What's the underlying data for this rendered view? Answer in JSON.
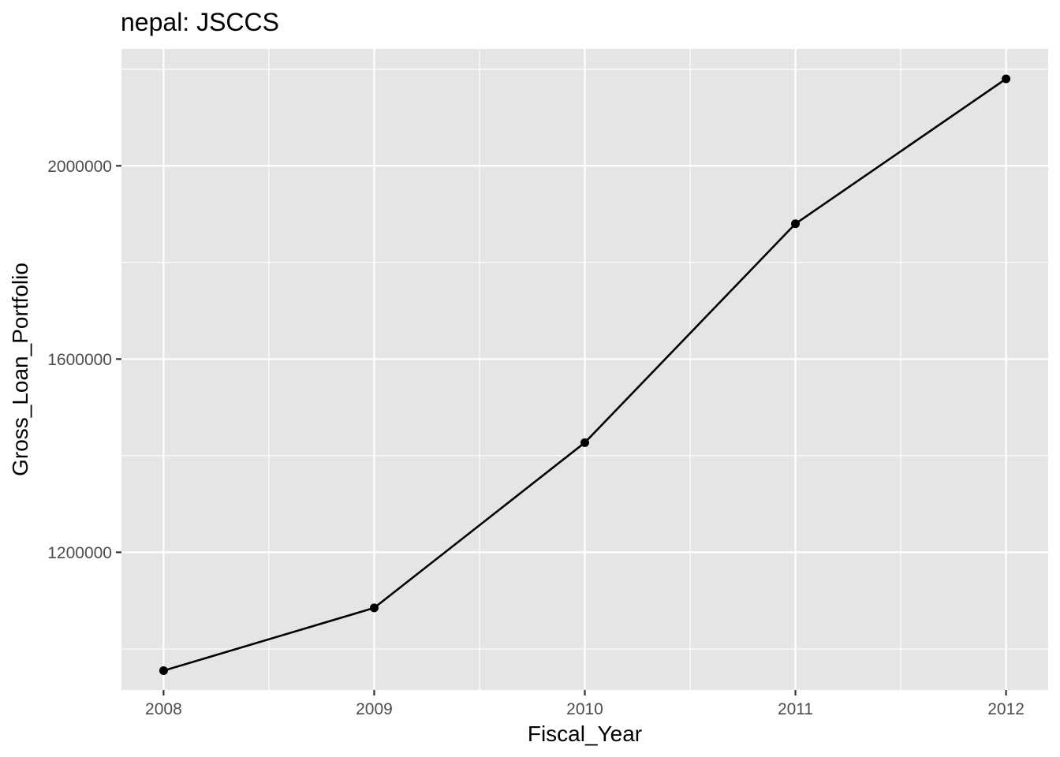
{
  "chart_data": {
    "type": "line",
    "title": "nepal:  JSCCS",
    "xlabel": "Fiscal_Year",
    "ylabel": "Gross_Loan_Portfolio",
    "x": [
      2008,
      2009,
      2010,
      2011,
      2012
    ],
    "series": [
      {
        "values": [
          955000,
          1085000,
          1427000,
          1880000,
          2180000
        ]
      }
    ],
    "x_ticks": [
      2008,
      2009,
      2010,
      2011,
      2012
    ],
    "x_tick_labels": [
      "2008",
      "2009",
      "2010",
      "2011",
      "2012"
    ],
    "y_ticks": [
      1200000,
      1600000,
      2000000
    ],
    "y_tick_labels": [
      "1200000",
      "1600000",
      "2000000"
    ],
    "xlim": [
      2007.8,
      2012.2
    ],
    "ylim": [
      915000,
      2242000
    ],
    "grid": true,
    "colors": {
      "panel": "#e5e5e5",
      "grid": "#ffffff",
      "line": "#000000",
      "tick_text": "#4d4d4d"
    }
  }
}
